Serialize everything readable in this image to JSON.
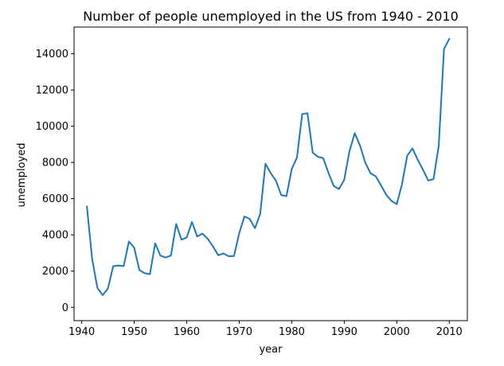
{
  "chart_data": {
    "type": "line",
    "title": "Number of people unemployed in the US from 1940 - 2010",
    "xlabel": "year",
    "ylabel": "unemployed",
    "xlim": [
      1938.55,
      2013.45
    ],
    "ylim": [
      -735,
      15475
    ],
    "xticks": [
      1940,
      1950,
      1960,
      1970,
      1980,
      1990,
      2000,
      2010
    ],
    "yticks": [
      0,
      2000,
      4000,
      6000,
      8000,
      10000,
      12000,
      14000
    ],
    "grid": false,
    "legend": "none",
    "series": [
      {
        "color": "#1f77b4",
        "x": [
          1941,
          1942,
          1943,
          1944,
          1945,
          1946,
          1947,
          1948,
          1949,
          1950,
          1951,
          1952,
          1953,
          1954,
          1955,
          1956,
          1957,
          1958,
          1959,
          1960,
          1961,
          1962,
          1963,
          1964,
          1965,
          1966,
          1967,
          1968,
          1969,
          1970,
          1971,
          1972,
          1973,
          1974,
          1975,
          1976,
          1977,
          1978,
          1979,
          1980,
          1981,
          1982,
          1983,
          1984,
          1985,
          1986,
          1987,
          1988,
          1989,
          1990,
          1991,
          1992,
          1993,
          1994,
          1995,
          1996,
          1997,
          1998,
          1999,
          2000,
          2001,
          2002,
          2003,
          2004,
          2005,
          2006,
          2007,
          2008,
          2009,
          2010
        ],
        "values": [
          5560,
          2660,
          1070,
          670,
          1040,
          2270,
          2311,
          2276,
          3637,
          3288,
          2055,
          1883,
          1834,
          3532,
          2852,
          2750,
          2859,
          4602,
          3740,
          3852,
          4714,
          3911,
          4070,
          3786,
          3366,
          2875,
          2975,
          2817,
          2832,
          4093,
          5016,
          4882,
          4365,
          5156,
          7929,
          7406,
          6991,
          6202,
          6137,
          7637,
          8273,
          10678,
          10717,
          8539,
          8312,
          8237,
          7425,
          6701,
          6528,
          7047,
          8628,
          9613,
          8940,
          7996,
          7404,
          7236,
          6739,
          6210,
          5880,
          5692,
          6801,
          8378,
          8774,
          8149,
          7591,
          7001,
          7078,
          8924,
          14265,
          14825
        ]
      }
    ]
  }
}
